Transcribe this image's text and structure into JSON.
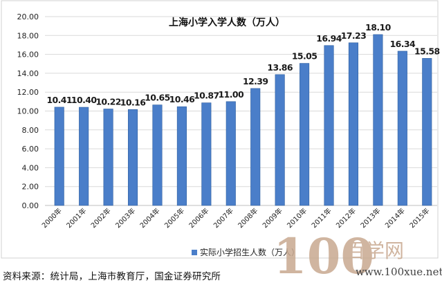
{
  "chart_data": {
    "type": "bar",
    "title": "上海小学入学人数（万人）",
    "categories": [
      "2000年",
      "2001年",
      "2002年",
      "2003年",
      "2004年",
      "2005年",
      "2006年",
      "2007年",
      "2008年",
      "2009年",
      "2010年",
      "2011年",
      "2012年",
      "2013年",
      "2014年",
      "2015年"
    ],
    "series": [
      {
        "name": "实际小学招生人数（万人）",
        "values": [
          10.41,
          10.4,
          10.22,
          10.16,
          10.65,
          10.46,
          10.87,
          11.0,
          12.39,
          13.86,
          15.05,
          16.94,
          17.23,
          18.1,
          16.34,
          15.58
        ],
        "data_labels": [
          "10.41",
          "10.40",
          "10.22",
          "10.16",
          "10.65",
          "10.46",
          "10.87",
          "11.00",
          "12.39",
          "13.86",
          "15.05",
          "16.94",
          "17.23",
          "18.10",
          "16.34",
          "15.58"
        ]
      }
    ],
    "y_ticks": [
      "0.00",
      "2.00",
      "4.00",
      "6.00",
      "8.00",
      "10.00",
      "12.00",
      "14.00",
      "16.00",
      "18.00",
      "20.00"
    ],
    "ylim": [
      0,
      20
    ],
    "grid": true,
    "legend_position": "bottom",
    "colors": {
      "bar": "#4a7ec9",
      "bar_edge": "#2f5f9f"
    }
  },
  "source_note": "资料来源：统计局，上海市教育厅，国金证券研究所",
  "watermark": {
    "brand": "百学网",
    "url": "www.100xue.net"
  }
}
